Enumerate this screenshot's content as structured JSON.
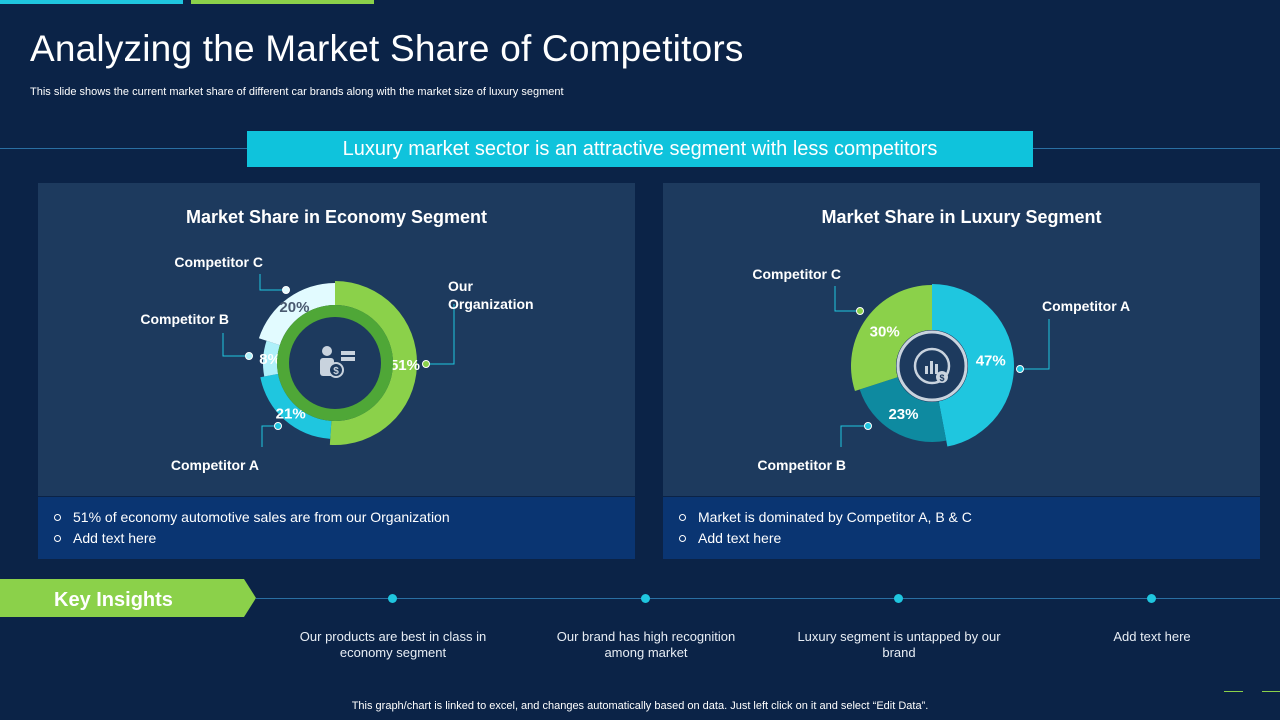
{
  "slide": {
    "title": "Analyzing the Market Share of Competitors",
    "subtitle": "This slide shows the current market share of different car brands along with the market size of luxury segment",
    "banner": "Luxury market sector is an attractive segment with less competitors",
    "footer": "This graph/chart is linked to excel, and changes automatically based on data. Just left click on it and select “Edit Data”."
  },
  "colors": {
    "background": "#0b2347",
    "panel": "#1d3a5e",
    "notes": "#0a3572",
    "cyan": "#1fc6df",
    "green": "#8bd14a"
  },
  "panels": {
    "economy": {
      "title": "Market Share in Economy Segment",
      "icon": "money-person-icon",
      "notes": [
        "51% of economy automotive sales are from our Organization",
        "Add text here"
      ]
    },
    "luxury": {
      "title": "Market Share in Luxury Segment",
      "icon": "chart-dollar-icon",
      "notes": [
        "Market is dominated by Competitor A, B & C",
        "Add text here"
      ]
    }
  },
  "chart_data": [
    {
      "type": "pie",
      "title": "Market Share in Economy Segment",
      "categories": [
        "Our Organization",
        "Competitor A",
        "Competitor B",
        "Competitor C"
      ],
      "values": [
        51,
        21,
        8,
        20
      ],
      "value_labels": [
        "51%",
        "21%",
        "8%",
        "20%"
      ],
      "label_lines": [
        [
          "Our",
          "Organization"
        ],
        [
          "Competitor A"
        ],
        [
          "Competitor B"
        ],
        [
          "Competitor C"
        ]
      ],
      "colors": [
        "#8bd14a",
        "#1fc6df",
        "#aef0fa",
        "#e2fbff"
      ]
    },
    {
      "type": "pie",
      "title": "Market Share in Luxury Segment",
      "categories": [
        "Competitor A",
        "Competitor B",
        "Competitor C"
      ],
      "values": [
        47,
        23,
        30
      ],
      "value_labels": [
        "47%",
        "23%",
        "30%"
      ],
      "label_lines": [
        [
          "Competitor A"
        ],
        [
          "Competitor B"
        ],
        [
          "Competitor C"
        ]
      ],
      "colors": [
        "#1fc6df",
        "#0e8aa0",
        "#8bd14a"
      ]
    }
  ],
  "key_insights": {
    "label": "Key Insights",
    "items": [
      "Our products are best in class in economy segment",
      "Our brand has high recognition among market",
      "Luxury segment is untapped by our brand",
      "Add text here"
    ]
  }
}
